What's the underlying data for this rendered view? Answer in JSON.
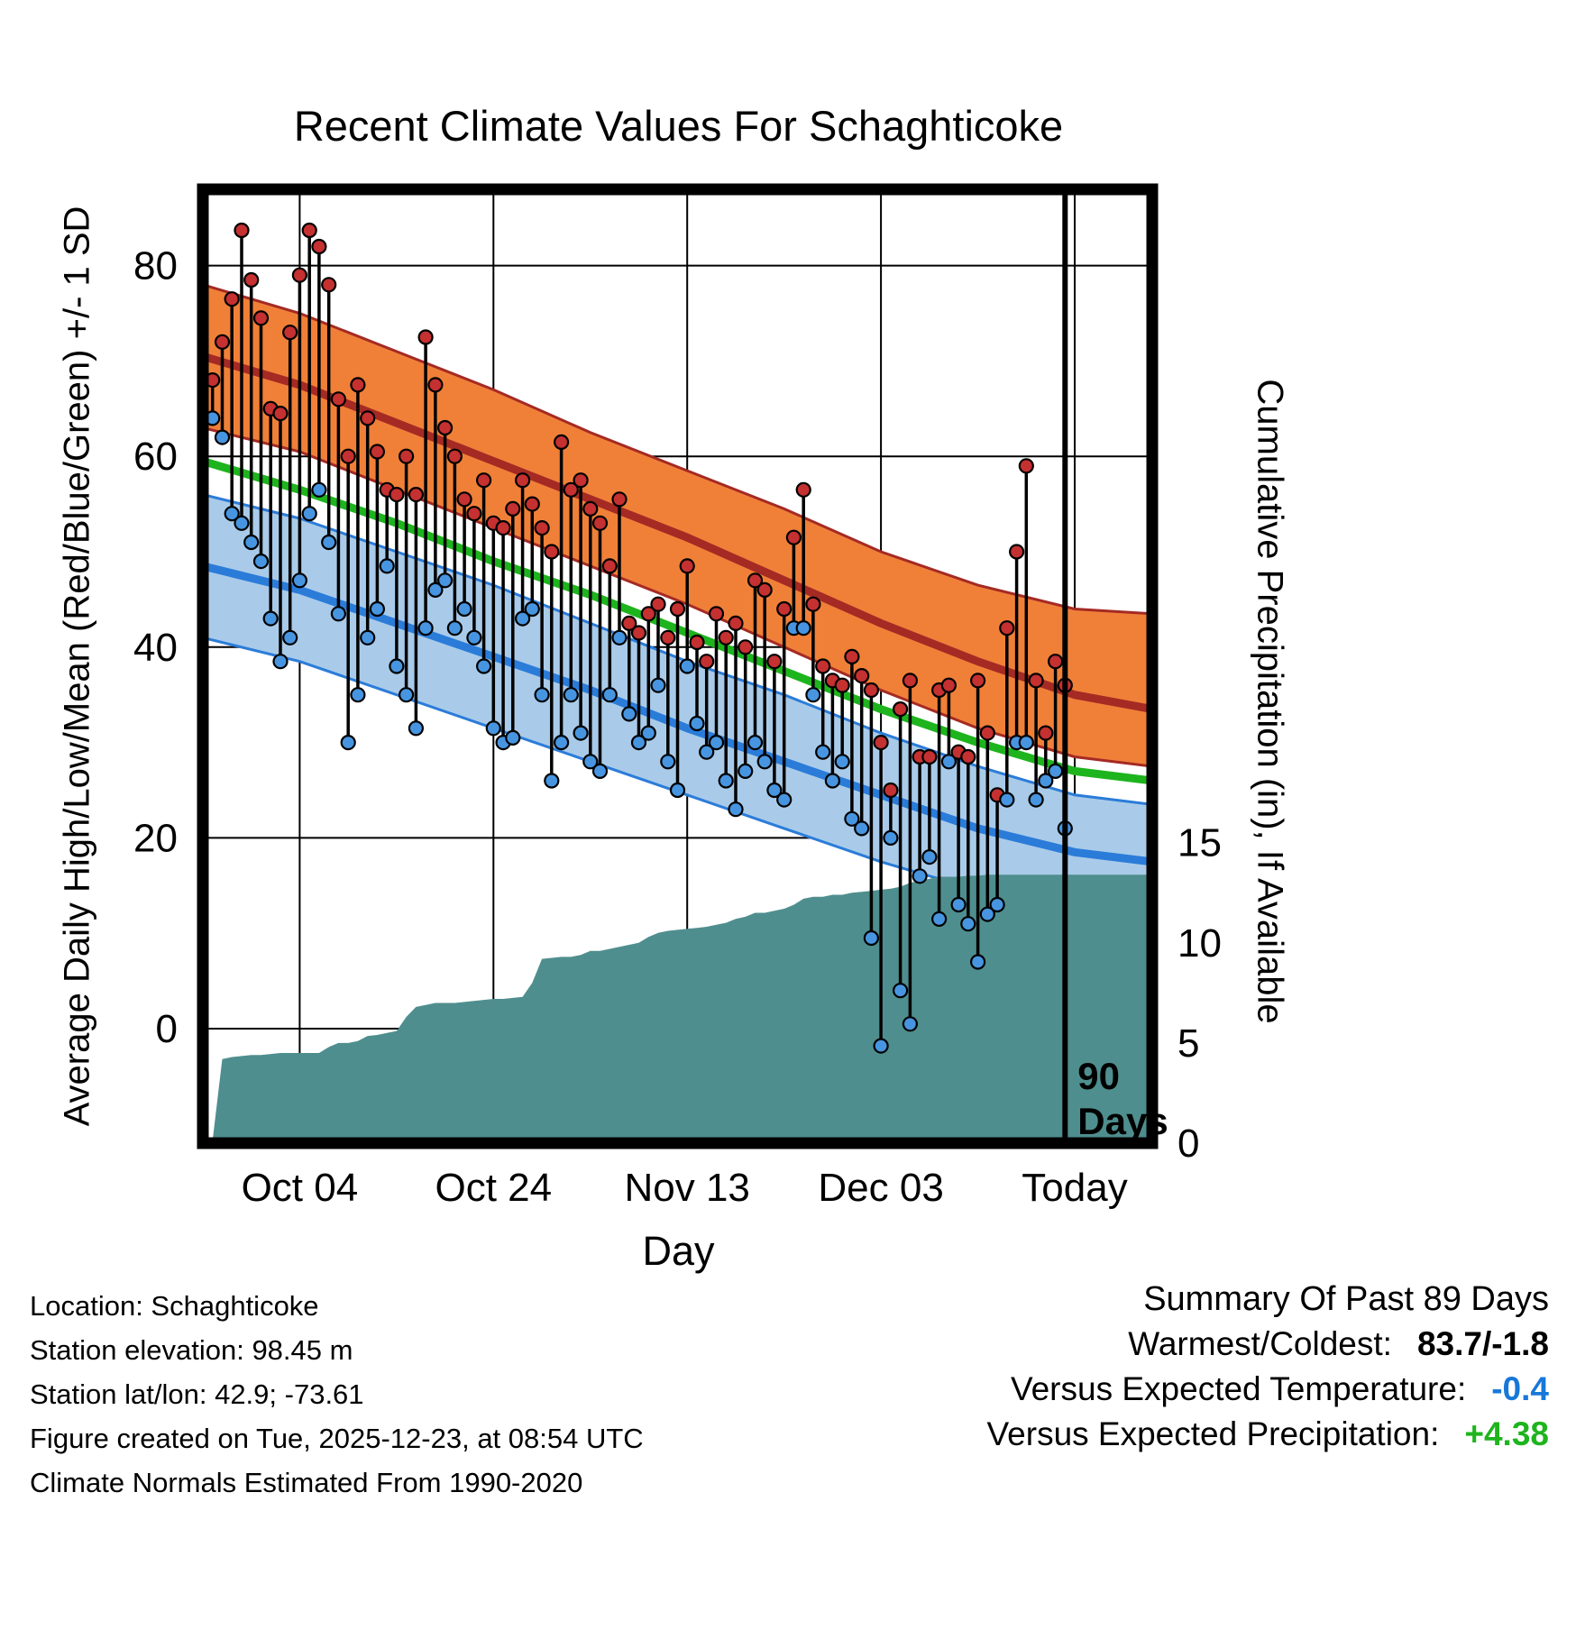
{
  "title": "Recent Climate Values For Schaghticoke",
  "axes": {
    "y_left_label": "Average Daily High/Low/Mean (Red/Blue/Green) +/- 1 SD",
    "y_right_label": "Cumulative Precipitation (in), If Available",
    "x_label": "Day"
  },
  "footer": {
    "lines": [
      "Location: Schaghticoke",
      "Station elevation: 98.45 m",
      "Station lat/lon: 42.9; -73.61",
      "Figure created on Tue, 2025-12-23, at 08:54 UTC",
      "Climate Normals Estimated From 1990-2020"
    ]
  },
  "summary": {
    "title": "Summary Of Past 89 Days",
    "rows": [
      {
        "label": "Warmest/Coldest:",
        "value": "83.7/-1.8",
        "color": "#000000"
      },
      {
        "label": "Versus Expected Temperature:",
        "value": "-0.4",
        "color": "#1778D9"
      },
      {
        "label": "Versus Expected Precipitation:",
        "value": "+4.38",
        "color": "#1EB41E"
      }
    ]
  },
  "colors": {
    "high_band": "#F08038",
    "high_line": "#A52A24",
    "low_band": "#A9CBE9",
    "low_line": "#2B7CD9",
    "mean_line": "#1EB41E",
    "precip_fill": "#4F8E8E",
    "stem": "#000000",
    "high_dot": "#C53030",
    "low_dot": "#4795E0",
    "grid": "#000000",
    "frame": "#000000"
  },
  "chart_data": {
    "type": "line",
    "title": "Recent Climate Values For Schaghticoke",
    "xlabel": "Day",
    "x_domain_days": [
      0,
      98
    ],
    "x_ticks": [
      {
        "day": 10,
        "label": "Oct 04"
      },
      {
        "day": 30,
        "label": "Oct 24"
      },
      {
        "day": 50,
        "label": "Nov 13"
      },
      {
        "day": 70,
        "label": "Dec 03"
      },
      {
        "day": 90,
        "label": "Today"
      }
    ],
    "y_temp": {
      "range": [
        -12,
        88
      ],
      "ticks": [
        0,
        20,
        40,
        60,
        80
      ]
    },
    "y_precip": {
      "ticks": [
        0,
        5,
        10,
        15
      ],
      "temp_at_zero": -12,
      "temp_per_inch": 2.1
    },
    "normals": {
      "days": [
        0,
        10,
        20,
        30,
        40,
        50,
        60,
        70,
        80,
        90,
        98
      ],
      "high_upper": [
        78,
        75,
        71,
        67,
        62.5,
        58.5,
        54.5,
        50,
        46.5,
        44,
        43.5
      ],
      "high_mean": [
        70.5,
        67.5,
        63.5,
        59.5,
        55.5,
        51.5,
        47,
        42.5,
        38.5,
        35,
        33.5
      ],
      "high_lower": [
        63,
        60.5,
        56.5,
        52.5,
        48.5,
        44.5,
        40,
        35.5,
        31.5,
        28.5,
        27.5
      ],
      "mean": [
        59.5,
        56.5,
        53,
        49,
        45.5,
        41.5,
        37.5,
        33.5,
        30,
        27,
        26
      ],
      "low_upper": [
        56,
        53.5,
        50,
        46.5,
        42.5,
        38.5,
        35,
        31,
        27.5,
        24.5,
        23.5
      ],
      "low_mean": [
        48.5,
        46,
        42.5,
        39,
        35.5,
        31.5,
        28,
        24.5,
        21,
        18.5,
        17.5
      ],
      "low_lower": [
        41,
        38.5,
        35,
        31.5,
        28,
        24.5,
        21,
        17.5,
        14.5,
        12.5,
        11.5
      ]
    },
    "daily": {
      "start_day": 1,
      "highs": [
        68,
        72,
        76.5,
        83.7,
        78.5,
        74.5,
        65,
        64.5,
        73,
        79,
        83.7,
        82,
        78,
        66,
        60,
        67.5,
        64,
        60.5,
        56.5,
        56,
        60,
        56,
        72.5,
        67.5,
        63,
        60,
        55.5,
        54,
        57.5,
        53,
        52.5,
        54.5,
        57.5,
        55,
        52.5,
        50,
        61.5,
        56.5,
        57.5,
        54.5,
        53,
        48.5,
        55.5,
        42.5,
        41.5,
        43.5,
        44.5,
        41,
        44,
        48.5,
        40.5,
        38.5,
        43.5,
        41,
        42.5,
        40,
        47,
        46,
        38.5,
        44,
        51.5,
        56.5,
        44.5,
        38,
        36.5,
        36,
        39,
        37,
        35.5,
        30,
        25,
        33.5,
        36.5,
        28.5,
        28.5,
        35.5,
        36,
        29,
        28.5,
        36.5,
        31,
        24.5,
        42,
        50,
        59,
        36.5,
        31,
        38.5,
        36
      ],
      "lows": [
        64,
        62,
        54,
        53,
        51,
        49,
        43,
        38.5,
        41,
        47,
        54,
        56.5,
        51,
        43.5,
        30,
        35,
        41,
        44,
        48.5,
        38,
        35,
        31.5,
        42,
        46,
        47,
        42,
        44,
        41,
        38,
        31.5,
        30,
        30.5,
        43,
        44,
        35,
        26,
        30,
        35,
        31,
        28,
        27,
        35,
        41,
        33,
        30,
        31,
        36,
        28,
        25,
        38,
        32,
        29,
        30,
        26,
        23,
        27,
        30,
        28,
        25,
        24,
        42,
        42,
        35,
        29,
        26,
        28,
        22,
        21,
        9.5,
        -1.8,
        20,
        4,
        0.5,
        16,
        18,
        11.5,
        28,
        13,
        11,
        7,
        12,
        13,
        24,
        30,
        30,
        24,
        26,
        27,
        21
      ]
    },
    "cumulative_precip_in": {
      "start_day": 1,
      "values": [
        0.1,
        4.2,
        4.3,
        4.35,
        4.4,
        4.4,
        4.45,
        4.5,
        4.5,
        4.5,
        4.5,
        4.5,
        4.8,
        5.0,
        5.0,
        5.1,
        5.35,
        5.4,
        5.5,
        5.6,
        6.3,
        6.8,
        6.9,
        7.0,
        7.0,
        7.0,
        7.05,
        7.1,
        7.15,
        7.2,
        7.2,
        7.25,
        7.3,
        8.0,
        9.2,
        9.25,
        9.3,
        9.3,
        9.4,
        9.6,
        9.6,
        9.7,
        9.8,
        9.9,
        10.0,
        10.3,
        10.5,
        10.6,
        10.65,
        10.7,
        10.75,
        10.8,
        10.9,
        11.0,
        11.2,
        11.3,
        11.5,
        11.5,
        11.6,
        11.7,
        11.9,
        12.2,
        12.3,
        12.3,
        12.4,
        12.4,
        12.5,
        12.55,
        12.6,
        12.65,
        12.7,
        12.8,
        13.0,
        13.1,
        13.2,
        13.3,
        13.3,
        13.3,
        13.35,
        13.35,
        13.4,
        13.4,
        13.4,
        13.4,
        13.4,
        13.4,
        13.4,
        13.4,
        13.4
      ]
    },
    "ninety_day_line": {
      "day": 89,
      "label_lines": [
        "90",
        "Days"
      ]
    }
  }
}
